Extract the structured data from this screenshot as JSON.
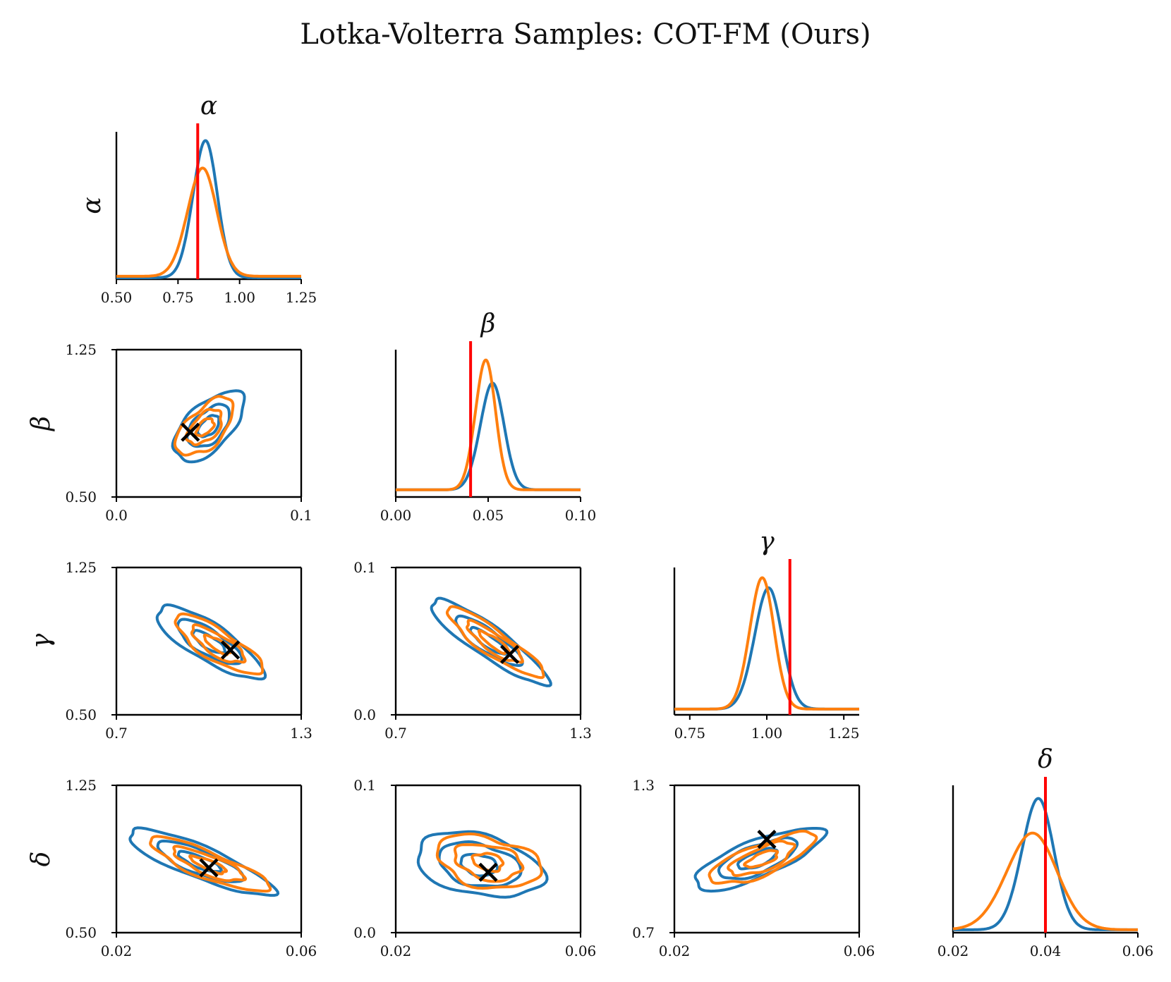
{
  "chart_data": {
    "type": "corner-plot",
    "title": "Lotka-Volterra Samples: COT-FM (Ours)",
    "params": [
      "α",
      "β",
      "γ",
      "δ"
    ],
    "series": [
      {
        "name": "blue",
        "color": "#1f77b4"
      },
      {
        "name": "orange",
        "color": "#ff7f0e"
      }
    ],
    "truth_color": "#ff0000",
    "marker_color": "#000000",
    "diagonals": [
      {
        "param": "α",
        "title": "α",
        "ylabel": "α",
        "xlim": [
          0.5,
          1.25
        ],
        "xticks": [
          "0.50",
          "0.75",
          "1.00",
          "1.25"
        ],
        "xtick_values": [
          0.5,
          0.75,
          1.0,
          1.25
        ],
        "truth": 0.83,
        "density": [
          {
            "mu": 0.855,
            "sigma": 0.05,
            "peak": 0.96,
            "base": 0.01
          },
          {
            "mu": 0.842,
            "sigma": 0.06,
            "peak": 0.77,
            "base": 0.02
          }
        ]
      },
      {
        "param": "β",
        "title": "β",
        "ylabel": "",
        "xlim": [
          0.0,
          0.1
        ],
        "xticks": [
          "0.00",
          "0.05",
          "0.10"
        ],
        "xtick_values": [
          0.0,
          0.05,
          0.1
        ],
        "truth": 0.0405,
        "density": [
          {
            "mu": 0.0515,
            "sigma": 0.0065,
            "peak": 0.79,
            "base": 0.05
          },
          {
            "mu": 0.048,
            "sigma": 0.0055,
            "peak": 0.95,
            "base": 0.05
          }
        ]
      },
      {
        "param": "γ",
        "title": "γ",
        "ylabel": "",
        "xlim": [
          0.7,
          1.3
        ],
        "xticks": [
          "0.75",
          "1.00",
          "1.25"
        ],
        "xtick_values": [
          0.75,
          1.0,
          1.25
        ],
        "truth": 1.075,
        "density": [
          {
            "mu": 1.0,
            "sigma": 0.045,
            "peak": 0.88,
            "base": 0.04
          },
          {
            "mu": 0.98,
            "sigma": 0.04,
            "peak": 0.95,
            "base": 0.04
          }
        ]
      },
      {
        "param": "δ",
        "title": "δ",
        "ylabel": "",
        "xlim": [
          0.02,
          0.06
        ],
        "xticks": [
          "0.02",
          "0.04",
          "0.06"
        ],
        "xtick_values": [
          0.02,
          0.04,
          0.06
        ],
        "truth": 0.04,
        "density": [
          {
            "mu": 0.038,
            "sigma": 0.0035,
            "peak": 0.93,
            "base": 0.02
          },
          {
            "mu": 0.0365,
            "sigma": 0.0055,
            "peak": 0.69,
            "base": 0.02
          }
        ]
      }
    ],
    "pairs": [
      {
        "row": 1,
        "col": 0,
        "ylabel": "β",
        "xlim": [
          0.0,
          0.1
        ],
        "ylim": [
          0.5,
          1.25
        ],
        "xticks": [
          "0.0",
          "0.1"
        ],
        "xtick_values": [
          0.0,
          0.1
        ],
        "yticks": [
          "0.50",
          "1.25"
        ],
        "ytick_values": [
          0.5,
          1.25
        ],
        "marker": [
          0.04,
          0.83
        ],
        "blue_center": [
          0.05,
          0.86
        ],
        "orange_center": [
          0.048,
          0.855
        ],
        "angle": 45,
        "a": [
          0.024,
          0.014,
          0.007
        ],
        "b": [
          0.012,
          0.008,
          0.004
        ]
      },
      {
        "row": 2,
        "col": 0,
        "ylabel": "γ",
        "xlim": [
          0.7,
          1.3
        ],
        "ylim": [
          0.5,
          1.25
        ],
        "xticks": [
          "0.7",
          "1.3"
        ],
        "xtick_values": [
          0.7,
          1.3
        ],
        "yticks": [
          "0.50",
          "1.25"
        ],
        "ytick_values": [
          0.5,
          1.25
        ],
        "marker": [
          1.07,
          0.83
        ],
        "blue_center": [
          1.0,
          0.87
        ],
        "orange_center": [
          1.03,
          0.855
        ],
        "angle": -32,
        "a": [
          0.2,
          0.12,
          0.06
        ],
        "b": [
          0.06,
          0.04,
          0.02
        ]
      },
      {
        "row": 2,
        "col": 1,
        "ylabel": "",
        "xlim": [
          0.7,
          1.3
        ],
        "ylim": [
          0.0,
          0.1
        ],
        "xticks": [
          "0.7",
          "1.3"
        ],
        "xtick_values": [
          0.7,
          1.3
        ],
        "yticks": [
          "0.0",
          "0.1"
        ],
        "ytick_values": [
          0.0,
          0.1
        ],
        "marker": [
          1.07,
          0.041
        ],
        "blue_center": [
          1.0,
          0.05
        ],
        "orange_center": [
          1.02,
          0.049
        ],
        "angle": -35,
        "a": [
          0.23,
          0.13,
          0.07
        ],
        "b": [
          0.05,
          0.035,
          0.018
        ]
      },
      {
        "row": 3,
        "col": 0,
        "ylabel": "δ",
        "xlim": [
          0.02,
          0.06
        ],
        "ylim": [
          0.5,
          1.25
        ],
        "xticks": [
          "0.02",
          "0.06"
        ],
        "xtick_values": [
          0.02,
          0.06
        ],
        "yticks": [
          "0.50",
          "1.25"
        ],
        "ytick_values": [
          0.5,
          1.25
        ],
        "marker": [
          0.04,
          0.83
        ],
        "blue_center": [
          0.038,
          0.86
        ],
        "orange_center": [
          0.04,
          0.845
        ],
        "angle": -22,
        "a": [
          0.017,
          0.01,
          0.005
        ],
        "b": [
          0.0035,
          0.0025,
          0.0012
        ]
      },
      {
        "row": 3,
        "col": 1,
        "ylabel": "",
        "xlim": [
          0.02,
          0.06
        ],
        "ylim": [
          0.0,
          0.1
        ],
        "xticks": [
          "0.02",
          "0.06"
        ],
        "xtick_values": [
          0.02,
          0.06
        ],
        "yticks": [
          "0.0",
          "0.1"
        ],
        "ytick_values": [
          0.0,
          0.1
        ],
        "marker": [
          0.04,
          0.041
        ],
        "blue_center": [
          0.038,
          0.046
        ],
        "orange_center": [
          0.04,
          0.048
        ],
        "angle": -12,
        "a": [
          0.014,
          0.009,
          0.004
        ],
        "b": [
          0.0065,
          0.0045,
          0.0022
        ]
      },
      {
        "row": 3,
        "col": 2,
        "ylabel": "",
        "xlim": [
          0.02,
          0.06
        ],
        "ylim": [
          0.7,
          1.3
        ],
        "xticks": [
          "0.02",
          "0.06"
        ],
        "xtick_values": [
          0.02,
          0.06
        ],
        "yticks": [
          "0.7",
          "1.3"
        ],
        "ytick_values": [
          0.7,
          1.3
        ],
        "marker": [
          0.04,
          1.08
        ],
        "blue_center": [
          0.038,
          1.0
        ],
        "orange_center": [
          0.039,
          1.0
        ],
        "angle": 22,
        "a": [
          0.015,
          0.009,
          0.0045
        ],
        "b": [
          0.004,
          0.003,
          0.0015
        ]
      }
    ]
  }
}
